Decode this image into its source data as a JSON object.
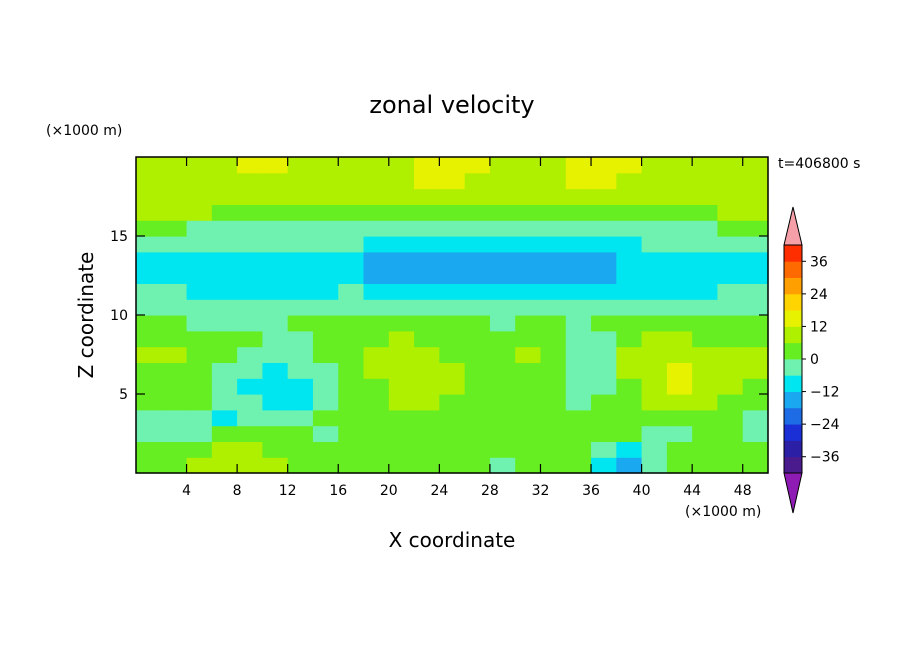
{
  "chart_data": {
    "type": "heatmap",
    "title": "zonal velocity",
    "xlabel": "X coordinate",
    "ylabel": "Z coordinate",
    "x_unit": "(×1000 m)",
    "y_unit": "(×1000 m)",
    "time_label": "t=406800 s",
    "xlim": [
      0,
      50
    ],
    "ylim": [
      0,
      20
    ],
    "x_ticks": [
      4,
      8,
      12,
      16,
      20,
      24,
      28,
      32,
      36,
      40,
      44,
      48
    ],
    "y_ticks": [
      5,
      10,
      15
    ],
    "colorbar": {
      "levels": [
        -42,
        -36,
        -30,
        -24,
        -18,
        -12,
        -6,
        0,
        6,
        12,
        18,
        24,
        30,
        36,
        42
      ],
      "tick_values": [
        -36,
        -24,
        -12,
        0,
        12,
        24,
        36
      ],
      "tick_labels": [
        "−36",
        "−24",
        "−12",
        "0",
        "12",
        "24",
        "36"
      ],
      "colors": [
        "#4a1b8c",
        "#2b1fa6",
        "#1a2fd6",
        "#1e6be6",
        "#1aa8f0",
        "#00e6f0",
        "#6ff2b0",
        "#66ee22",
        "#aef000",
        "#e6f200",
        "#ffd400",
        "#ff9f00",
        "#ff6a00",
        "#ff2e00"
      ],
      "under_color": "#8e1cb4",
      "over_color": "#f5a0a8"
    },
    "field": [
      [
        2,
        4,
        8,
        10,
        10,
        8,
        4,
        2,
        0,
        2,
        4,
        4,
        2,
        0,
        -4,
        0,
        2,
        0,
        -8,
        -14,
        -4,
        0,
        2,
        4,
        2
      ],
      [
        0,
        2,
        4,
        6,
        6,
        4,
        2,
        0,
        0,
        2,
        4,
        4,
        2,
        2,
        0,
        2,
        4,
        2,
        -4,
        -8,
        -4,
        0,
        2,
        2,
        0
      ],
      [
        -4,
        -2,
        -2,
        0,
        0,
        0,
        0,
        -2,
        0,
        2,
        2,
        2,
        4,
        4,
        2,
        4,
        4,
        2,
        0,
        0,
        -2,
        -2,
        0,
        0,
        -2
      ],
      [
        -2,
        -4,
        -6,
        -8,
        -6,
        -4,
        -2,
        0,
        2,
        4,
        4,
        2,
        2,
        2,
        0,
        0,
        2,
        2,
        0,
        2,
        4,
        2,
        2,
        0,
        -2
      ],
      [
        0,
        2,
        4,
        -2,
        -6,
        -8,
        -8,
        -4,
        0,
        4,
        6,
        6,
        4,
        2,
        2,
        2,
        0,
        -4,
        0,
        4,
        8,
        10,
        6,
        4,
        4
      ],
      [
        2,
        2,
        0,
        -4,
        -8,
        -10,
        -8,
        -4,
        0,
        4,
        8,
        8,
        6,
        2,
        0,
        2,
        0,
        -6,
        -2,
        4,
        10,
        12,
        8,
        6,
        4
      ],
      [
        4,
        4,
        2,
        -2,
        -6,
        -8,
        -6,
        -2,
        0,
        6,
        8,
        8,
        6,
        2,
        0,
        4,
        2,
        -6,
        -4,
        6,
        10,
        12,
        10,
        6,
        6
      ],
      [
        6,
        6,
        4,
        0,
        -2,
        -6,
        -4,
        0,
        2,
        6,
        8,
        6,
        4,
        0,
        2,
        6,
        4,
        -6,
        -2,
        6,
        10,
        10,
        8,
        6,
        6
      ],
      [
        2,
        2,
        2,
        0,
        0,
        -2,
        -2,
        0,
        2,
        4,
        6,
        4,
        2,
        0,
        0,
        2,
        0,
        -6,
        -2,
        4,
        6,
        6,
        4,
        4,
        4
      ],
      [
        0,
        0,
        -2,
        -2,
        -4,
        -2,
        0,
        0,
        2,
        2,
        4,
        4,
        2,
        0,
        -2,
        0,
        0,
        -4,
        0,
        2,
        2,
        2,
        2,
        2,
        2
      ],
      [
        -4,
        -4,
        -4,
        -4,
        -6,
        -6,
        -4,
        -2,
        -2,
        -2,
        -2,
        -2,
        -2,
        -4,
        -4,
        -4,
        -4,
        -4,
        -4,
        -2,
        -2,
        -2,
        -2,
        -2,
        -4
      ],
      [
        -6,
        -6,
        -8,
        -8,
        -8,
        -8,
        -8,
        -8,
        -6,
        -8,
        -8,
        -8,
        -8,
        -8,
        -8,
        -8,
        -8,
        -8,
        -8,
        -8,
        -8,
        -8,
        -8,
        -6,
        -6
      ],
      [
        -8,
        -8,
        -8,
        -8,
        -8,
        -8,
        -8,
        -8,
        -12,
        -14,
        -14,
        -14,
        -14,
        -14,
        -14,
        -14,
        -14,
        -14,
        -14,
        -12,
        -10,
        -10,
        -8,
        -8,
        -8
      ],
      [
        -8,
        -8,
        -8,
        -8,
        -8,
        -8,
        -8,
        -8,
        -12,
        -16,
        -16,
        -18,
        -18,
        -18,
        -18,
        -18,
        -18,
        -18,
        -16,
        -12,
        -10,
        -8,
        -8,
        -8,
        -8
      ],
      [
        -4,
        -4,
        -6,
        -6,
        -6,
        -6,
        -6,
        -6,
        -6,
        -8,
        -8,
        -8,
        -8,
        -8,
        -8,
        -8,
        -8,
        -8,
        -8,
        -8,
        -6,
        -6,
        -6,
        -4,
        -4
      ],
      [
        0,
        0,
        -2,
        -2,
        -2,
        -2,
        -2,
        -2,
        -2,
        -2,
        -2,
        -2,
        -2,
        -2,
        -2,
        -2,
        -2,
        -2,
        -2,
        -2,
        -2,
        -2,
        -2,
        0,
        0
      ],
      [
        8,
        6,
        6,
        4,
        4,
        4,
        4,
        4,
        2,
        2,
        2,
        2,
        2,
        2,
        2,
        2,
        2,
        2,
        2,
        4,
        4,
        4,
        4,
        6,
        8
      ],
      [
        10,
        10,
        8,
        8,
        8,
        10,
        10,
        8,
        8,
        8,
        10,
        10,
        10,
        8,
        8,
        8,
        10,
        10,
        10,
        8,
        10,
        10,
        10,
        10,
        10
      ],
      [
        8,
        8,
        8,
        10,
        10,
        10,
        8,
        8,
        8,
        10,
        10,
        12,
        12,
        10,
        10,
        10,
        10,
        12,
        12,
        10,
        10,
        10,
        8,
        8,
        8
      ],
      [
        10,
        10,
        10,
        10,
        12,
        12,
        10,
        10,
        10,
        10,
        10,
        12,
        12,
        12,
        10,
        10,
        10,
        12,
        14,
        12,
        10,
        10,
        10,
        10,
        10
      ]
    ]
  }
}
